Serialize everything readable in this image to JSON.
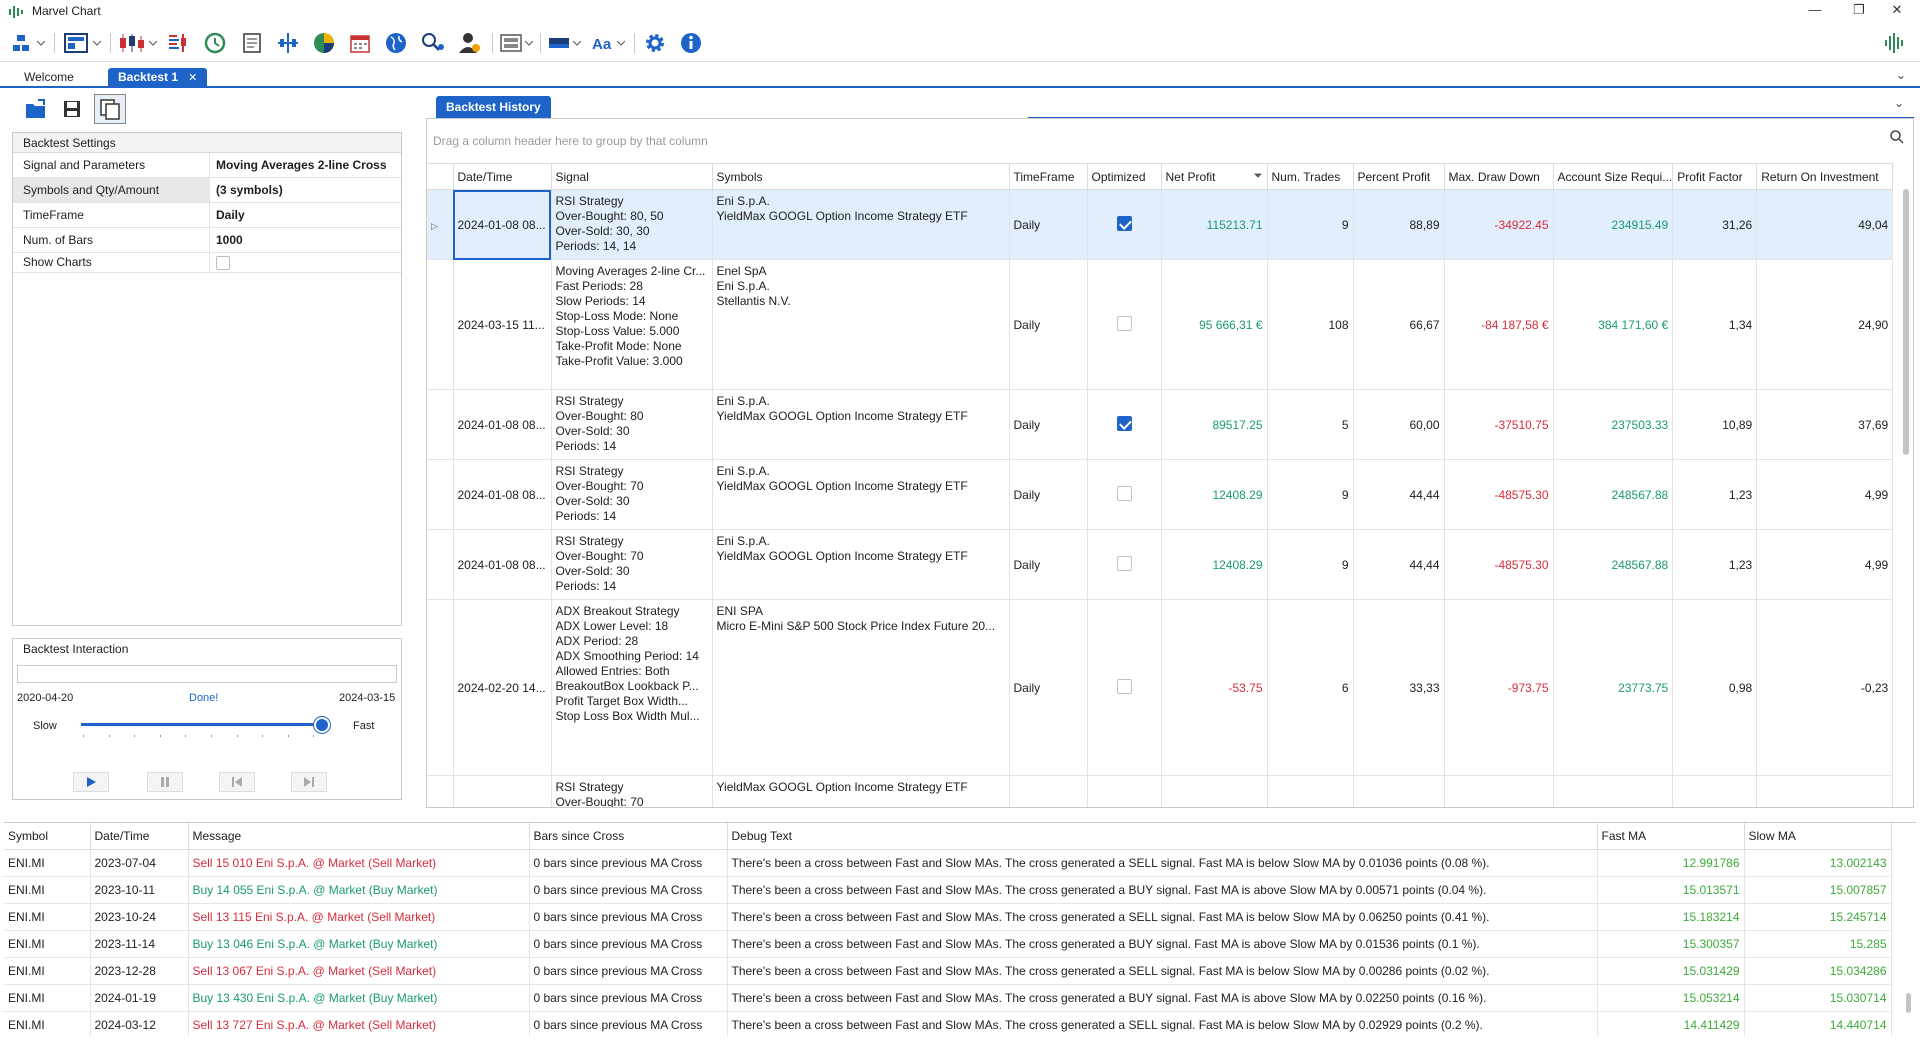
{
  "app": {
    "title": "Marvel Chart"
  },
  "tabs": [
    {
      "label": "Welcome"
    },
    {
      "label": "Backtest 1",
      "close": "✕"
    }
  ],
  "settings": {
    "header": "Backtest Settings",
    "rows": [
      {
        "label": "Signal and Parameters",
        "value": "Moving Averages 2-line Cross"
      },
      {
        "label": "Symbols and Qty/Amount",
        "value": "(3 symbols)"
      },
      {
        "label": "TimeFrame",
        "value": "Daily"
      },
      {
        "label": "Num. of Bars",
        "value": "1000"
      },
      {
        "label": "Show Charts",
        "value": ""
      }
    ]
  },
  "interaction": {
    "header": "Backtest Interaction",
    "start_date": "2020-04-20",
    "status": "Done!",
    "end_date": "2024-03-15",
    "slow_label": "Slow",
    "fast_label": "Fast",
    "speed_level": 0.98,
    "progress": 0
  },
  "history": {
    "tab_label": "Backtest History",
    "group_placeholder": "Drag a column header here to group by that column",
    "columns": [
      "Date/Time",
      "Signal",
      "Symbols",
      "TimeFrame",
      "Optimized",
      "Net Profit",
      "Num. Trades",
      "Percent Profit",
      "Max. Draw Down",
      "Account Size Requi...",
      "Profit Factor",
      "Return On Investment"
    ],
    "rows": [
      {
        "date": "2024-01-08 08...",
        "signal": [
          "RSI Strategy",
          "Over-Bought: 80, 50",
          "Over-Sold: 30, 30",
          "Periods: 14, 14"
        ],
        "symbols": [
          "Eni S.p.A.",
          "YieldMax GOOGL Option Income Strategy ETF"
        ],
        "timeframe": "Daily",
        "optimized": true,
        "net_profit": "115213.71",
        "num_trades": "9",
        "percent_profit": "88,89",
        "max_dd": "-34922.45",
        "account_size": "234915.49",
        "profit_factor": "31,26",
        "roi": "49,04"
      },
      {
        "date": "2024-03-15 11...",
        "signal": [
          "Moving Averages 2-line Cr...",
          "Fast Periods: 28",
          "Slow Periods: 14",
          "Stop-Loss Mode: None",
          "Stop-Loss Value: 5.000",
          "Take-Profit Mode: None",
          "Take-Profit Value: 3.000"
        ],
        "symbols": [
          "Enel SpA",
          "Eni S.p.A.",
          "Stellantis N.V."
        ],
        "timeframe": "Daily",
        "optimized": false,
        "net_profit": "95 666,31 €",
        "num_trades": "108",
        "percent_profit": "66,67",
        "max_dd": "-84 187,58 €",
        "account_size": "384 171,60 €",
        "profit_factor": "1,34",
        "roi": "24,90"
      },
      {
        "date": "2024-01-08 08...",
        "signal": [
          "RSI Strategy",
          "Over-Bought: 80",
          "Over-Sold: 30",
          "Periods: 14"
        ],
        "symbols": [
          "Eni S.p.A.",
          "YieldMax GOOGL Option Income Strategy ETF"
        ],
        "timeframe": "Daily",
        "optimized": true,
        "net_profit": "89517.25",
        "num_trades": "5",
        "percent_profit": "60,00",
        "max_dd": "-37510.75",
        "account_size": "237503.33",
        "profit_factor": "10,89",
        "roi": "37,69"
      },
      {
        "date": "2024-01-08 08...",
        "signal": [
          "RSI Strategy",
          "Over-Bought: 70",
          "Over-Sold: 30",
          "Periods: 14"
        ],
        "symbols": [
          "Eni S.p.A.",
          "YieldMax GOOGL Option Income Strategy ETF"
        ],
        "timeframe": "Daily",
        "optimized": false,
        "net_profit": "12408.29",
        "num_trades": "9",
        "percent_profit": "44,44",
        "max_dd": "-48575.30",
        "account_size": "248567.88",
        "profit_factor": "1,23",
        "roi": "4,99"
      },
      {
        "date": "2024-01-08 08...",
        "signal": [
          "RSI Strategy",
          "Over-Bought: 70",
          "Over-Sold: 30",
          "Periods: 14"
        ],
        "symbols": [
          "Eni S.p.A.",
          "YieldMax GOOGL Option Income Strategy ETF"
        ],
        "timeframe": "Daily",
        "optimized": false,
        "net_profit": "12408.29",
        "num_trades": "9",
        "percent_profit": "44,44",
        "max_dd": "-48575.30",
        "account_size": "248567.88",
        "profit_factor": "1,23",
        "roi": "4,99"
      },
      {
        "date": "2024-02-20 14...",
        "signal": [
          "ADX Breakout Strategy",
          "ADX Lower Level: 18",
          "ADX Period: 28",
          "ADX Smoothing Period: 14",
          "Allowed Entries: Both",
          "BreakoutBox Lookback P...",
          "Profit Target Box Width...",
          "Stop Loss Box Width Mul..."
        ],
        "symbols": [
          "ENI SPA",
          "Micro E-Mini S&P 500 Stock Price Index Future 20..."
        ],
        "timeframe": "Daily",
        "optimized": false,
        "net_profit": "-53.75",
        "num_trades": "6",
        "percent_profit": "33,33",
        "max_dd": "-973.75",
        "account_size": "23773.75",
        "profit_factor": "0,98",
        "roi": "-0,23"
      },
      {
        "date": "",
        "signal": [
          "RSI Strategy",
          "Over-Bought: 70"
        ],
        "symbols": [
          "YieldMax GOOGL Option Income Strategy ETF"
        ],
        "timeframe": "",
        "optimized": null,
        "net_profit": "",
        "num_trades": "",
        "percent_profit": "",
        "max_dd": "",
        "account_size": "",
        "profit_factor": "",
        "roi": ""
      }
    ]
  },
  "log": {
    "columns": [
      "Symbol",
      "Date/Time",
      "Message",
      "Bars since Cross",
      "Debug Text",
      "Fast MA",
      "Slow MA"
    ],
    "rows": [
      {
        "symbol": "ENI.MI",
        "date": "2023-07-04",
        "message": "Sell 15 010 Eni S.p.A. @ Market (Sell Market)",
        "side": "sell",
        "bars": "0 bars since previous MA Cross",
        "debug": "There's been a cross between Fast and Slow MAs. The cross generated a SELL signal. Fast MA is below Slow MA by 0.01036 points (0.08 %).",
        "fast": "12.991786",
        "slow": "13.002143"
      },
      {
        "symbol": "ENI.MI",
        "date": "2023-10-11",
        "message": "Buy 14 055 Eni S.p.A. @ Market (Buy Market)",
        "side": "buy",
        "bars": "0 bars since previous MA Cross",
        "debug": "There's been a cross between Fast and Slow MAs. The cross generated a BUY signal. Fast MA is above Slow MA by 0.00571 points (0.04 %).",
        "fast": "15.013571",
        "slow": "15.007857"
      },
      {
        "symbol": "ENI.MI",
        "date": "2023-10-24",
        "message": "Sell 13 115 Eni S.p.A. @ Market (Sell Market)",
        "side": "sell",
        "bars": "0 bars since previous MA Cross",
        "debug": "There's been a cross between Fast and Slow MAs. The cross generated a SELL signal. Fast MA is below Slow MA by 0.06250 points (0.41 %).",
        "fast": "15.183214",
        "slow": "15.245714"
      },
      {
        "symbol": "ENI.MI",
        "date": "2023-11-14",
        "message": "Buy 13 046 Eni S.p.A. @ Market (Buy Market)",
        "side": "buy",
        "bars": "0 bars since previous MA Cross",
        "debug": "There's been a cross between Fast and Slow MAs. The cross generated a BUY signal. Fast MA is above Slow MA by 0.01536 points (0.1 %).",
        "fast": "15.300357",
        "slow": "15.285"
      },
      {
        "symbol": "ENI.MI",
        "date": "2023-12-28",
        "message": "Sell 13 067 Eni S.p.A. @ Market (Sell Market)",
        "side": "sell",
        "bars": "0 bars since previous MA Cross",
        "debug": "There's been a cross between Fast and Slow MAs. The cross generated a SELL signal. Fast MA is below Slow MA by 0.00286 points (0.02 %).",
        "fast": "15.031429",
        "slow": "15.034286"
      },
      {
        "symbol": "ENI.MI",
        "date": "2024-01-19",
        "message": "Buy 13 430 Eni S.p.A. @ Market (Buy Market)",
        "side": "buy",
        "bars": "0 bars since previous MA Cross",
        "debug": "There's been a cross between Fast and Slow MAs. The cross generated a BUY signal. Fast MA is above Slow MA by 0.02250 points (0.16 %).",
        "fast": "15.053214",
        "slow": "15.030714"
      },
      {
        "symbol": "ENI.MI",
        "date": "2024-03-12",
        "message": "Sell 13 727 Eni S.p.A. @ Market (Sell Market)",
        "side": "sell",
        "bars": "0 bars since previous MA Cross",
        "debug": "There's been a cross between Fast and Slow MAs. The cross generated a SELL signal. Fast MA is below Slow MA by 0.02929 points (0.2 %).",
        "fast": "14.411429",
        "slow": "14.440714"
      }
    ]
  },
  "colors": {
    "accent": "#1e64c8",
    "positive": "#1a9a73",
    "negative": "#d62d3c",
    "ma_value": "#3ea93a"
  },
  "icons": [
    "app-logo-icon",
    "workspace-icon",
    "layout-icon",
    "candlestick-icon",
    "indicators-icon",
    "history-icon",
    "report-icon",
    "scanner-icon",
    "pie-chart-icon",
    "calendar-icon",
    "globe-icon",
    "search-person-icon",
    "user-settings-icon",
    "keyboard-icon",
    "color-icon",
    "font-icon",
    "gear-icon",
    "info-icon",
    "open-folder-icon",
    "save-icon",
    "copy-icon"
  ]
}
